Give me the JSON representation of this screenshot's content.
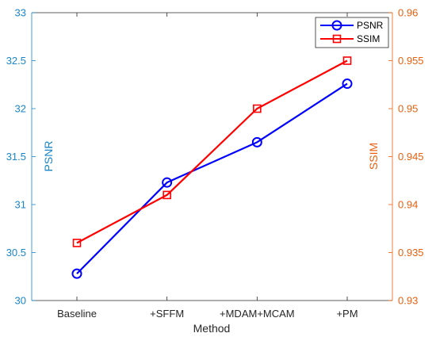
{
  "chart_data": {
    "type": "line",
    "categories": [
      "Baseline",
      "+SFFM",
      "+MDAM+MCAM",
      "+PM"
    ],
    "xlabel": "Method",
    "series": [
      {
        "name": "PSNR",
        "axis": "left",
        "color": "#0000ff",
        "marker": "circle",
        "values": [
          30.28,
          31.23,
          31.65,
          32.26
        ]
      },
      {
        "name": "SSIM",
        "axis": "right",
        "color": "#ff0000",
        "marker": "square",
        "values": [
          0.936,
          0.941,
          0.95,
          0.955
        ]
      }
    ],
    "left_axis": {
      "label": "PSNR",
      "color": "#1a86c8",
      "ylim": [
        30,
        33
      ],
      "ticks": [
        "30",
        "30.5",
        "31",
        "31.5",
        "32",
        "32.5",
        "33"
      ]
    },
    "right_axis": {
      "label": "SSIM",
      "color": "#e8600f",
      "ylim": [
        0.93,
        0.96
      ],
      "ticks": [
        "0.93",
        "0.935",
        "0.94",
        "0.945",
        "0.95",
        "0.955",
        "0.96"
      ]
    },
    "grid": false,
    "legend_position": "top-right"
  }
}
